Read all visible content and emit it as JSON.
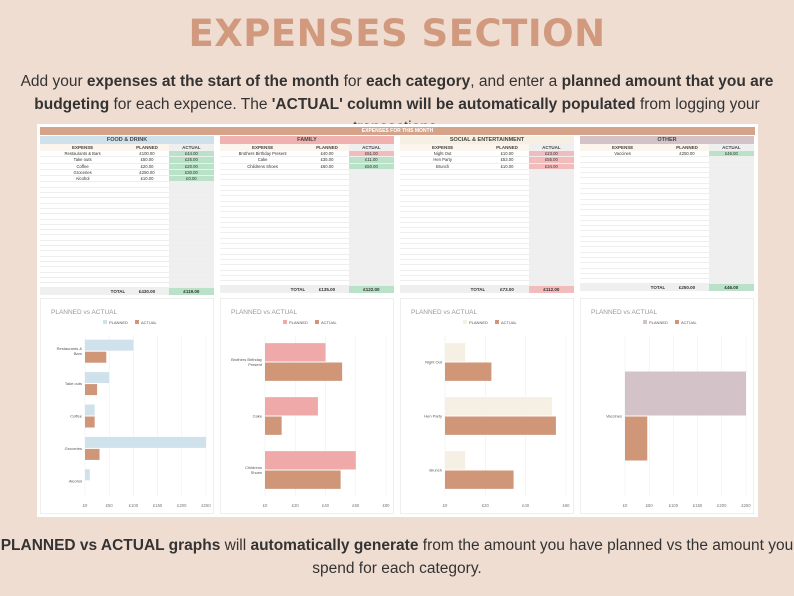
{
  "title": "EXPENSES SECTION",
  "intro": [
    {
      "t": "Add your ",
      "b": false
    },
    {
      "t": "expenses at the start of the month",
      "b": true
    },
    {
      "t": " for ",
      "b": false
    },
    {
      "t": "each category",
      "b": true
    },
    {
      "t": ", and enter a ",
      "b": false
    },
    {
      "t": "planned amount that you are budgeting",
      "b": true
    },
    {
      "t": " for each expence. The ",
      "b": false
    },
    {
      "t": "'ACTUAL' column will be automatically populated",
      "b": true
    },
    {
      "t": " from logging your transactions.",
      "b": false
    }
  ],
  "sheet_title": "EXPENSES FOR THIS MONTH",
  "headers": {
    "expense": "EXPENSE",
    "planned": "PLANNED",
    "actual": "ACTUAL",
    "total": "TOTAL"
  },
  "categories": [
    {
      "name": "FOOD & DRINK",
      "color": "#cfe1ea",
      "items": [
        {
          "expense": "Restaurants & Bars",
          "planned": "£100.00",
          "actual": "£44.00",
          "status": "g"
        },
        {
          "expense": "Take outs",
          "planned": "£50.00",
          "actual": "£25.00",
          "status": "g"
        },
        {
          "expense": "Coffee",
          "planned": "£20.00",
          "actual": "£20.00",
          "status": "g"
        },
        {
          "expense": "Groceries",
          "planned": "£250.00",
          "actual": "£30.00",
          "status": "g"
        },
        {
          "expense": "Alcohol",
          "planned": "£10.00",
          "actual": "£0.00",
          "status": "g"
        }
      ],
      "total_planned": "£430.00",
      "total_actual": "£119.00",
      "total_status": "g"
    },
    {
      "name": "FAMILY",
      "color": "#f0b1b1",
      "items": [
        {
          "expense": "Brothers Birthday Present",
          "planned": "£40.00",
          "actual": "£51.00",
          "status": "r"
        },
        {
          "expense": "Cake",
          "planned": "£35.00",
          "actual": "£11.00",
          "status": "g"
        },
        {
          "expense": "Childrens Shoes",
          "planned": "£60.00",
          "actual": "£50.00",
          "status": "g"
        }
      ],
      "total_planned": "£135.00",
      "total_actual": "£122.00",
      "total_status": "g"
    },
    {
      "name": "SOCIAL & ENTERTAINMENT",
      "color": "#f6efe3",
      "items": [
        {
          "expense": "Night Out",
          "planned": "£10.00",
          "actual": "£23.00",
          "status": "r"
        },
        {
          "expense": "Hen Party",
          "planned": "£53.00",
          "actual": "£55.00",
          "status": "r"
        },
        {
          "expense": "Brunch",
          "planned": "£10.00",
          "actual": "£34.00",
          "status": "r"
        }
      ],
      "total_planned": "£73.00",
      "total_actual": "£112.00",
      "total_status": "r"
    },
    {
      "name": "OTHER",
      "color": "#d3c2c8",
      "items": [
        {
          "expense": "Vaccines",
          "planned": "£250.00",
          "actual": "£46.00",
          "status": "g"
        }
      ],
      "total_planned": "£250.00",
      "total_actual": "£46.00",
      "total_status": "g"
    }
  ],
  "chart_data": [
    {
      "type": "bar",
      "orientation": "horizontal",
      "title": "PLANNED vs ACTUAL",
      "categories": [
        "Restaurants & Bars",
        "Take outs",
        "Coffee",
        "Groceries",
        "Alcohol"
      ],
      "series": [
        {
          "name": "PLANNED",
          "values": [
            100,
            50,
            20,
            250,
            10
          ],
          "color": "#cfe1ea"
        },
        {
          "name": "ACTUAL",
          "values": [
            44,
            25,
            20,
            30,
            0
          ],
          "color": "#cf9677"
        }
      ],
      "xlim": [
        0,
        250
      ],
      "ticks": [
        "£0",
        "£50",
        "£100",
        "£150",
        "£200",
        "£250"
      ],
      "legend": "top"
    },
    {
      "type": "bar",
      "orientation": "horizontal",
      "title": "PLANNED vs ACTUAL",
      "categories": [
        "Brothers Birthday Present",
        "Cake",
        "Childrens Shoes"
      ],
      "series": [
        {
          "name": "PLANNED",
          "values": [
            40,
            35,
            60
          ],
          "color": "#f0a9a9"
        },
        {
          "name": "ACTUAL",
          "values": [
            51,
            11,
            50
          ],
          "color": "#cf9677"
        }
      ],
      "xlim": [
        0,
        80
      ],
      "ticks": [
        "£0",
        "£20",
        "£40",
        "£60",
        "£80"
      ],
      "legend": "top"
    },
    {
      "type": "bar",
      "orientation": "horizontal",
      "title": "PLANNED vs ACTUAL",
      "categories": [
        "Night Out",
        "Hen Party",
        "Brunch"
      ],
      "series": [
        {
          "name": "PLANNED",
          "values": [
            10,
            53,
            10
          ],
          "color": "#f6efe3"
        },
        {
          "name": "ACTUAL",
          "values": [
            23,
            55,
            34
          ],
          "color": "#cf9677"
        }
      ],
      "xlim": [
        0,
        60
      ],
      "ticks": [
        "£0",
        "£20",
        "£40",
        "£60"
      ],
      "legend": "top"
    },
    {
      "type": "bar",
      "orientation": "horizontal",
      "title": "PLANNED vs ACTUAL",
      "categories": [
        "Vaccines"
      ],
      "series": [
        {
          "name": "PLANNED",
          "values": [
            250
          ],
          "color": "#d3c2c8"
        },
        {
          "name": "ACTUAL",
          "values": [
            46
          ],
          "color": "#cf9677"
        }
      ],
      "xlim": [
        0,
        250
      ],
      "ticks": [
        "£0",
        "£50",
        "£100",
        "£150",
        "£200",
        "£250"
      ],
      "legend": "top"
    }
  ],
  "footer": [
    {
      "t": "PLANNED vs ACTUAL graphs",
      "b": true
    },
    {
      "t": " will ",
      "b": false
    },
    {
      "t": "automatically generate",
      "b": true
    },
    {
      "t": " from the amount you have planned vs the amount you spend for each category.",
      "b": false
    }
  ]
}
